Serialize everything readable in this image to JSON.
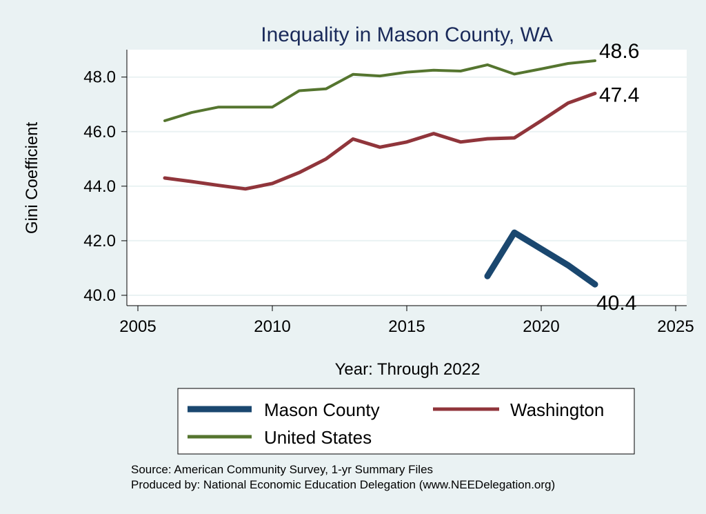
{
  "chart_data": {
    "type": "line",
    "title": "Inequality in Mason County, WA",
    "xlabel": "Year: Through 2022",
    "ylabel": "Gini Coefficient",
    "xlim": [
      2005,
      2025
    ],
    "ylim": [
      40.0,
      48.6
    ],
    "xticks": [
      2005,
      2010,
      2015,
      2020,
      2025
    ],
    "yticks": [
      40.0,
      42.0,
      44.0,
      46.0,
      48.0
    ],
    "xtick_labels": [
      "2005",
      "2010",
      "2015",
      "2020",
      "2025"
    ],
    "ytick_labels": [
      "40.0",
      "42.0",
      "44.0",
      "46.0",
      "48.0"
    ],
    "grid": true,
    "legend_position": "bottom",
    "series": [
      {
        "name": "Mason County",
        "color": "#1a476f",
        "x": [
          2018,
          2019,
          2020,
          2021,
          2022
        ],
        "y": [
          40.7,
          42.3,
          41.7,
          41.1,
          40.4
        ],
        "end_label": "40.4"
      },
      {
        "name": "Washington",
        "color": "#90353b",
        "x": [
          2006,
          2007,
          2008,
          2009,
          2010,
          2011,
          2012,
          2013,
          2014,
          2015,
          2016,
          2017,
          2018,
          2019,
          2020,
          2021,
          2022
        ],
        "y": [
          44.3,
          44.17,
          44.03,
          43.9,
          44.1,
          44.5,
          45.0,
          45.73,
          45.43,
          45.62,
          45.93,
          45.62,
          45.74,
          45.77,
          46.4,
          47.05,
          47.4
        ],
        "end_label": "47.4"
      },
      {
        "name": "United States",
        "color": "#55752f",
        "x": [
          2006,
          2007,
          2008,
          2009,
          2010,
          2011,
          2012,
          2013,
          2014,
          2015,
          2016,
          2017,
          2018,
          2019,
          2020,
          2021,
          2022
        ],
        "y": [
          46.4,
          46.7,
          46.9,
          46.9,
          46.9,
          47.5,
          47.57,
          48.1,
          48.04,
          48.18,
          48.25,
          48.22,
          48.45,
          48.11,
          48.3,
          48.5,
          48.6
        ],
        "end_label": "48.6"
      }
    ],
    "source_lines": [
      "Source: American Community Survey, 1-yr Summary Files",
      "Produced by: National Economic Education Delegation (www.NEEDelegation.org)"
    ]
  }
}
